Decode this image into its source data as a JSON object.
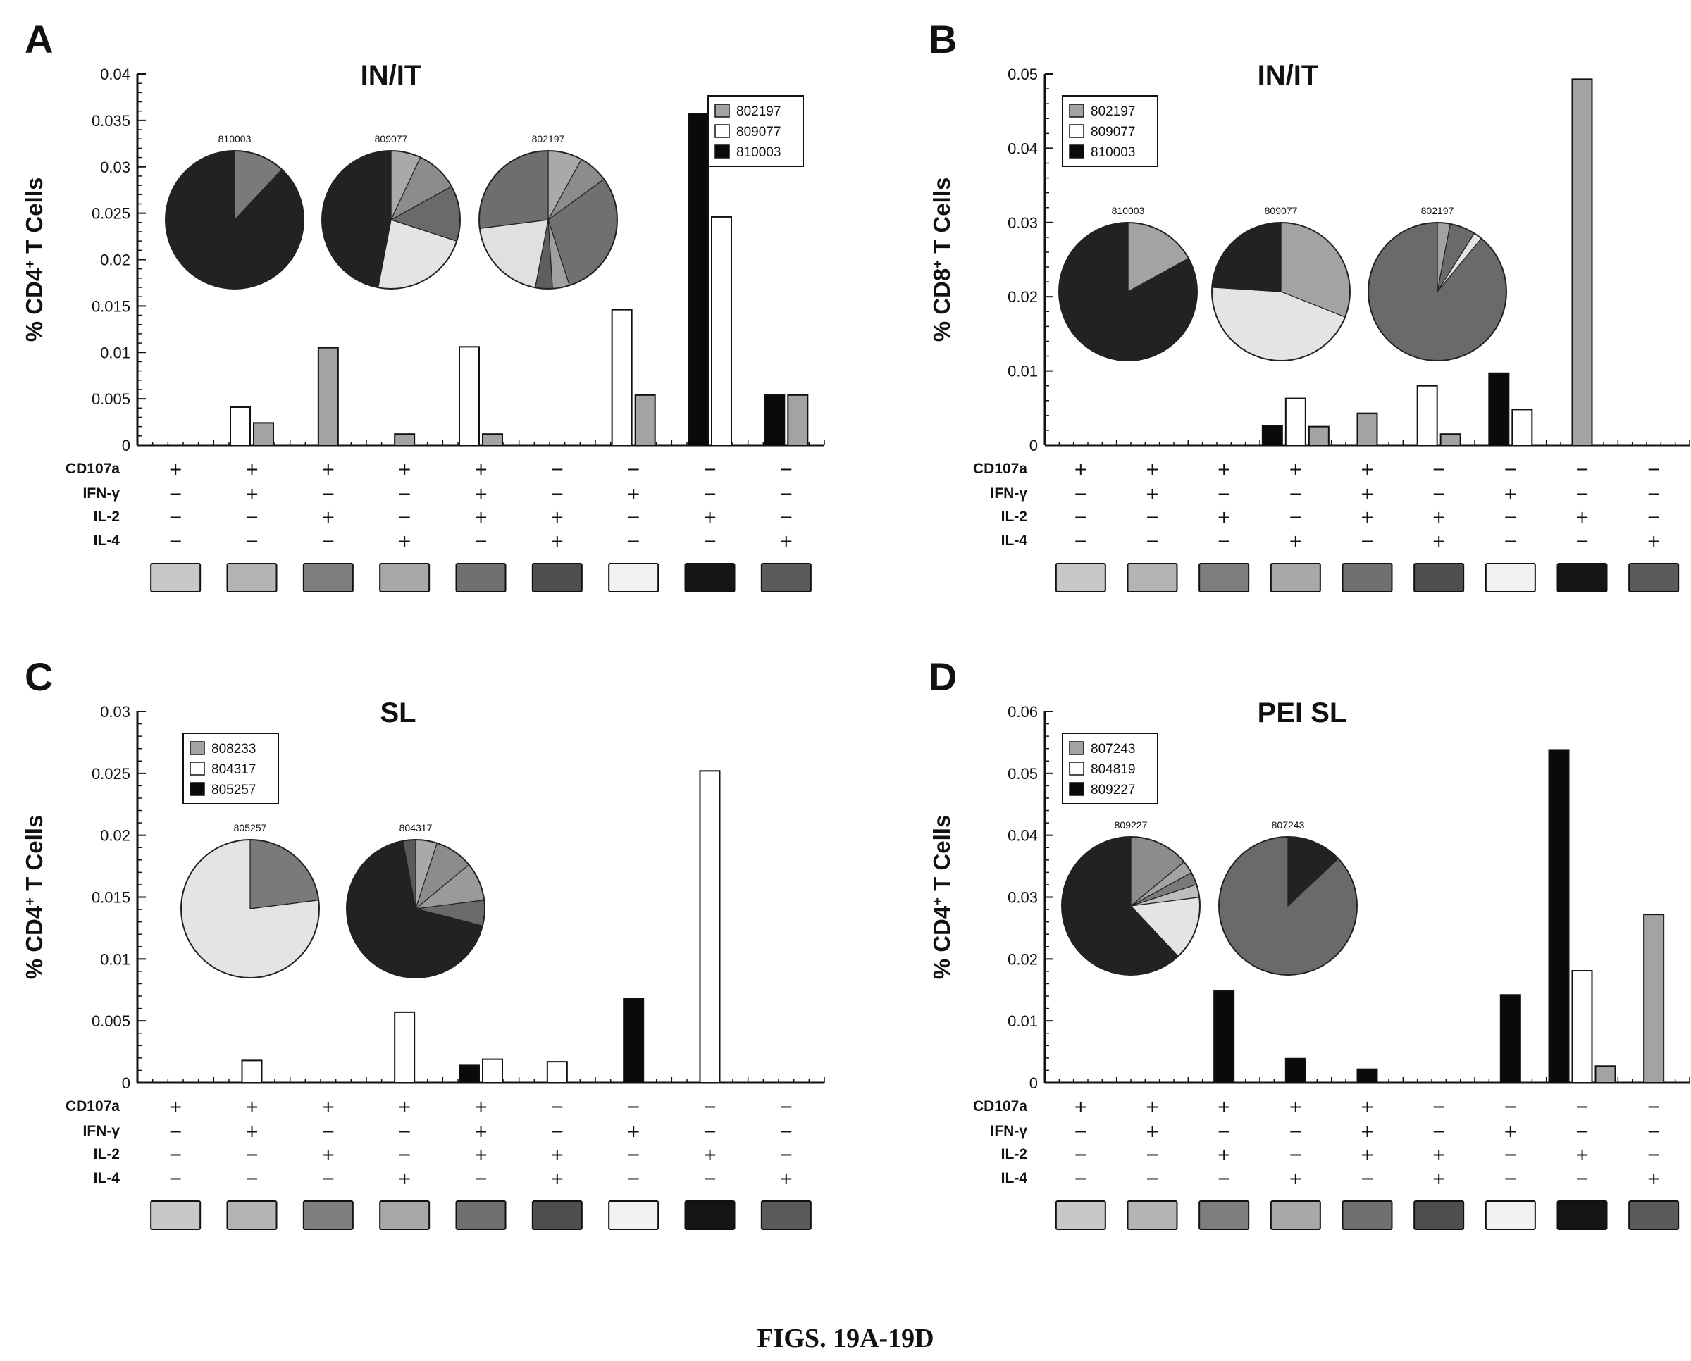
{
  "caption": "FIGS. 19A-19D",
  "row_labels": [
    "CD107a",
    "IFN-γ",
    "IL-2",
    "IL-4"
  ],
  "combinations": [
    [
      "+",
      "−",
      "−",
      "−"
    ],
    [
      "+",
      "+",
      "−",
      "−"
    ],
    [
      "+",
      "−",
      "+",
      "−"
    ],
    [
      "+",
      "−",
      "−",
      "+"
    ],
    [
      "+",
      "+",
      "+",
      "−"
    ],
    [
      "−",
      "−",
      "+",
      "+"
    ],
    [
      "−",
      "+",
      "−",
      "−"
    ],
    [
      "−",
      "−",
      "+",
      "−"
    ],
    [
      "−",
      "−",
      "−",
      "+"
    ]
  ],
  "chart_data": [
    {
      "type": "bar",
      "letter": "A",
      "title": "IN/IT",
      "ylabel_pre": "% CD4",
      "ylabel_sup": "+",
      "ylabel_post": " T Cells",
      "ylim": [
        0,
        0.04
      ],
      "yticks": [
        0,
        0.005,
        0.01,
        0.015,
        0.02,
        0.025,
        0.03,
        0.035,
        0.04
      ],
      "ytick_labels": [
        "0",
        "0.005",
        "0.01",
        "0.015",
        "0.02",
        "0.025",
        "0.03",
        "0.035",
        "0.04"
      ],
      "series_order": [
        "810003",
        "809077",
        "802197"
      ],
      "series": [
        {
          "name": "802197",
          "color": "#a3a3a3",
          "values": [
            0,
            0.0024,
            0.0105,
            0.0012,
            0.0012,
            0,
            0.0054,
            0,
            0.0054
          ]
        },
        {
          "name": "809077",
          "color": "#ffffff",
          "values": [
            0,
            0.0041,
            0,
            0,
            0.0106,
            0,
            0.0146,
            0.0246,
            0
          ]
        },
        {
          "name": "810003",
          "color": "#0a0a0a",
          "values": [
            0,
            0,
            0,
            0,
            0,
            0,
            0,
            0.0357,
            0.0054
          ]
        }
      ],
      "pies": [
        {
          "label": "810003",
          "slices": [
            {
              "value": 12,
              "color": "#7a7a7a"
            },
            {
              "value": 88,
              "color": "#222222"
            }
          ]
        },
        {
          "label": "809077",
          "slices": [
            {
              "value": 7,
              "color": "#a9a9a9"
            },
            {
              "value": 10,
              "color": "#8c8c8c"
            },
            {
              "value": 13,
              "color": "#6a6a6a"
            },
            {
              "value": 23,
              "color": "#e4e4e4"
            },
            {
              "value": 47,
              "color": "#222222"
            }
          ]
        },
        {
          "label": "802197",
          "slices": [
            {
              "value": 8,
              "color": "#a9a9a9"
            },
            {
              "value": 7,
              "color": "#8c8c8c"
            },
            {
              "value": 30,
              "color": "#707070"
            },
            {
              "value": 4,
              "color": "#a0a0a0"
            },
            {
              "value": 4,
              "color": "#5e5e5e"
            },
            {
              "value": 20,
              "color": "#e0e0e0"
            },
            {
              "value": 27,
              "color": "#6e6e6e"
            }
          ]
        }
      ]
    },
    {
      "type": "bar",
      "letter": "B",
      "title": "IN/IT",
      "ylabel_pre": "% CD8",
      "ylabel_sup": "+",
      "ylabel_post": " T Cells",
      "ylim": [
        0,
        0.05
      ],
      "yticks": [
        0,
        0.01,
        0.02,
        0.03,
        0.04,
        0.05
      ],
      "ytick_labels": [
        "0",
        "0.01",
        "0.02",
        "0.03",
        "0.04",
        "0.05"
      ],
      "series_order": [
        "810003",
        "809077",
        "802197"
      ],
      "series": [
        {
          "name": "802197",
          "color": "#a3a3a3",
          "values": [
            0,
            0,
            0,
            0.0025,
            0.0043,
            0.0015,
            0,
            0.0493,
            0
          ]
        },
        {
          "name": "809077",
          "color": "#ffffff",
          "values": [
            0,
            0,
            0,
            0.0063,
            0,
            0.008,
            0.0048,
            0,
            0
          ]
        },
        {
          "name": "810003",
          "color": "#0a0a0a",
          "values": [
            0,
            0,
            0,
            0.0026,
            0,
            0,
            0.0097,
            0,
            0
          ]
        }
      ],
      "pies": [
        {
          "label": "810003",
          "slices": [
            {
              "value": 17,
              "color": "#a3a3a3"
            },
            {
              "value": 83,
              "color": "#222222"
            }
          ]
        },
        {
          "label": "809077",
          "slices": [
            {
              "value": 31,
              "color": "#a3a3a3"
            },
            {
              "value": 45,
              "color": "#e4e4e4"
            },
            {
              "value": 24,
              "color": "#222222"
            }
          ]
        },
        {
          "label": "802197",
          "slices": [
            {
              "value": 3,
              "color": "#a3a3a3"
            },
            {
              "value": 6,
              "color": "#6a6a6a"
            },
            {
              "value": 2,
              "color": "#e4e4e4"
            },
            {
              "value": 89,
              "color": "#6a6a6a"
            }
          ]
        }
      ]
    },
    {
      "type": "bar",
      "letter": "C",
      "title": "SL",
      "ylabel_pre": "% CD4",
      "ylabel_sup": "+",
      "ylabel_post": " T Cells",
      "ylim": [
        0,
        0.03
      ],
      "yticks": [
        0,
        0.005,
        0.01,
        0.015,
        0.02,
        0.025,
        0.03
      ],
      "ytick_labels": [
        "0",
        "0.005",
        "0.01",
        "0.015",
        "0.02",
        "0.025",
        "0.03"
      ],
      "series_order": [
        "805257",
        "804317",
        "808233"
      ],
      "series": [
        {
          "name": "808233",
          "color": "#a3a3a3",
          "values": [
            0,
            0,
            0,
            0,
            0,
            0,
            0,
            0,
            0
          ]
        },
        {
          "name": "804317",
          "color": "#ffffff",
          "values": [
            0,
            0.0018,
            0,
            0.0057,
            0.0019,
            0.0017,
            0,
            0.0252,
            0
          ]
        },
        {
          "name": "805257",
          "color": "#0a0a0a",
          "values": [
            0,
            0,
            0,
            0,
            0.0014,
            0,
            0.0068,
            0,
            0
          ]
        }
      ],
      "pies": [
        {
          "label": "805257",
          "slices": [
            {
              "value": 23,
              "color": "#7a7a7a"
            },
            {
              "value": 77,
              "color": "#e4e4e4"
            }
          ]
        },
        {
          "label": "804317",
          "slices": [
            {
              "value": 5,
              "color": "#a9a9a9"
            },
            {
              "value": 9,
              "color": "#8c8c8c"
            },
            {
              "value": 9,
              "color": "#9a9a9a"
            },
            {
              "value": 6,
              "color": "#6a6a6a"
            },
            {
              "value": 68,
              "color": "#222222"
            },
            {
              "value": 3,
              "color": "#5a5a5a"
            }
          ]
        }
      ]
    },
    {
      "type": "bar",
      "letter": "D",
      "title": "PEI SL",
      "ylabel_pre": "% CD4",
      "ylabel_sup": "+",
      "ylabel_post": " T Cells",
      "ylim": [
        0,
        0.06
      ],
      "yticks": [
        0,
        0.01,
        0.02,
        0.03,
        0.04,
        0.05,
        0.06
      ],
      "ytick_labels": [
        "0",
        "0.01",
        "0.02",
        "0.03",
        "0.04",
        "0.05",
        "0.06"
      ],
      "series_order": [
        "809227",
        "804819",
        "807243"
      ],
      "series": [
        {
          "name": "807243",
          "color": "#a3a3a3",
          "values": [
            0,
            0,
            0,
            0,
            0,
            0,
            0,
            0.0027,
            0.0272
          ]
        },
        {
          "name": "804819",
          "color": "#ffffff",
          "values": [
            0,
            0,
            0,
            0,
            0,
            0,
            0,
            0.0181,
            0
          ]
        },
        {
          "name": "809227",
          "color": "#0a0a0a",
          "values": [
            0,
            0,
            0.0148,
            0.0039,
            0.0022,
            0,
            0.0142,
            0.0538,
            0
          ]
        }
      ],
      "pies": [
        {
          "label": "809227",
          "slices": [
            {
              "value": 14,
              "color": "#8c8c8c"
            },
            {
              "value": 3,
              "color": "#a3a3a3"
            },
            {
              "value": 3,
              "color": "#7a7a7a"
            },
            {
              "value": 3,
              "color": "#bdbdbd"
            },
            {
              "value": 15,
              "color": "#e4e4e4"
            },
            {
              "value": 62,
              "color": "#222222"
            }
          ]
        },
        {
          "label": "807243",
          "slices": [
            {
              "value": 13,
              "color": "#222222"
            },
            {
              "value": 87,
              "color": "#6a6a6a"
            }
          ]
        }
      ]
    }
  ],
  "legends": [
    [
      {
        "name": "802197",
        "color": "#a3a3a3"
      },
      {
        "name": "809077",
        "color": "#ffffff"
      },
      {
        "name": "810003",
        "color": "#0a0a0a"
      }
    ],
    [
      {
        "name": "802197",
        "color": "#a3a3a3"
      },
      {
        "name": "809077",
        "color": "#ffffff"
      },
      {
        "name": "810003",
        "color": "#0a0a0a"
      }
    ],
    [
      {
        "name": "808233",
        "color": "#a3a3a3"
      },
      {
        "name": "804317",
        "color": "#ffffff"
      },
      {
        "name": "805257",
        "color": "#0a0a0a"
      }
    ],
    [
      {
        "name": "807243",
        "color": "#a3a3a3"
      },
      {
        "name": "804819",
        "color": "#ffffff"
      },
      {
        "name": "809227",
        "color": "#0a0a0a"
      }
    ]
  ],
  "swatch_colors": [
    "#c8c8c8",
    "#b4b4b4",
    "#7e7e7e",
    "#a8a8a8",
    "#707070",
    "#4e4e4e",
    "#f2f2f2",
    "#151515",
    "#5a5a5a"
  ]
}
